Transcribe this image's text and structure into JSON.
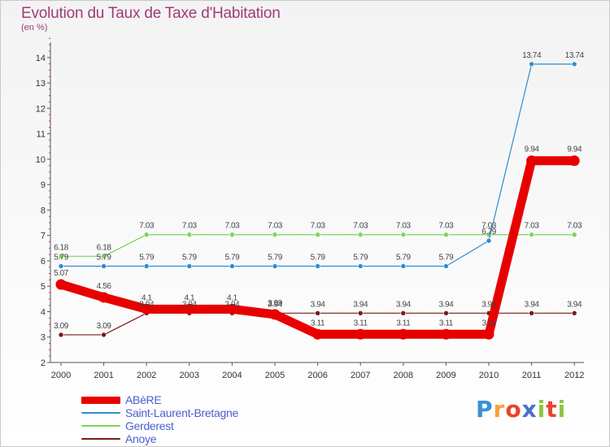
{
  "chart_data": {
    "type": "line",
    "title": "Evolution du Taux de Taxe d'Habitation",
    "subtitle": "(en %)",
    "x": [
      "2000",
      "2001",
      "2002",
      "2003",
      "2004",
      "2005",
      "2006",
      "2007",
      "2008",
      "2009",
      "2010",
      "2011",
      "2012"
    ],
    "yticks": [
      2,
      3,
      4,
      5,
      6,
      7,
      8,
      9,
      10,
      11,
      12,
      13,
      14
    ],
    "ylim": [
      2,
      14.6
    ],
    "grid": false,
    "legend_position": "bottom-left",
    "series": [
      {
        "name": "ABèRE",
        "color": "#e80000",
        "width": 11,
        "values": [
          5.07,
          4.56,
          4.1,
          4.1,
          4.1,
          3.89,
          3.11,
          3.11,
          3.11,
          3.11,
          3.11,
          9.94,
          9.94
        ],
        "labels": [
          "5.07",
          "4.56",
          "4.1",
          "4.1",
          "4.1",
          "3.89",
          "3.11",
          "3.11",
          "3.11",
          "3.11",
          "3.11",
          "9.94",
          "9.94"
        ]
      },
      {
        "name": "Saint-Laurent-Bretagne",
        "color": "#2f8cd0",
        "width": 1.2,
        "values": [
          5.79,
          5.79,
          5.79,
          5.79,
          5.79,
          5.79,
          5.79,
          5.79,
          5.79,
          5.79,
          6.79,
          13.74,
          13.74
        ],
        "labels": [
          "5.79",
          "5.79",
          "5.79",
          "5.79",
          "5.79",
          "5.79",
          "5.79",
          "5.79",
          "5.79",
          "5.79",
          "6.79",
          "13.74",
          "13.74"
        ]
      },
      {
        "name": "Gerderest",
        "color": "#7fd35a",
        "width": 1.2,
        "values": [
          6.18,
          6.18,
          7.03,
          7.03,
          7.03,
          7.03,
          7.03,
          7.03,
          7.03,
          7.03,
          7.03,
          7.03,
          7.03
        ],
        "labels": [
          "6.18",
          "6.18",
          "7.03",
          "7.03",
          "7.03",
          "7.03",
          "7.03",
          "7.03",
          "7.03",
          "7.03",
          "7.03",
          "7.03",
          "7.03"
        ]
      },
      {
        "name": "Anoye",
        "color": "#7a1a1a",
        "width": 1.2,
        "values": [
          3.09,
          3.09,
          3.94,
          3.94,
          3.94,
          3.94,
          3.94,
          3.94,
          3.94,
          3.94,
          3.94,
          3.94,
          3.94
        ],
        "labels": [
          "3.09",
          "3.09",
          "3.94",
          "3.94",
          "3.94",
          "3.94",
          "3.94",
          "3.94",
          "3.94",
          "3.94",
          "3.94",
          "3.94",
          "3.94"
        ]
      }
    ]
  },
  "logo": {
    "letters": [
      "P",
      "r",
      "o",
      "x",
      "i",
      "t",
      "i"
    ],
    "colors": [
      "#3a8fd8",
      "#f2a23a",
      "#e8442a",
      "#4a6fd0",
      "#8cc63f",
      "#e8442a",
      "#8cc63f"
    ]
  }
}
